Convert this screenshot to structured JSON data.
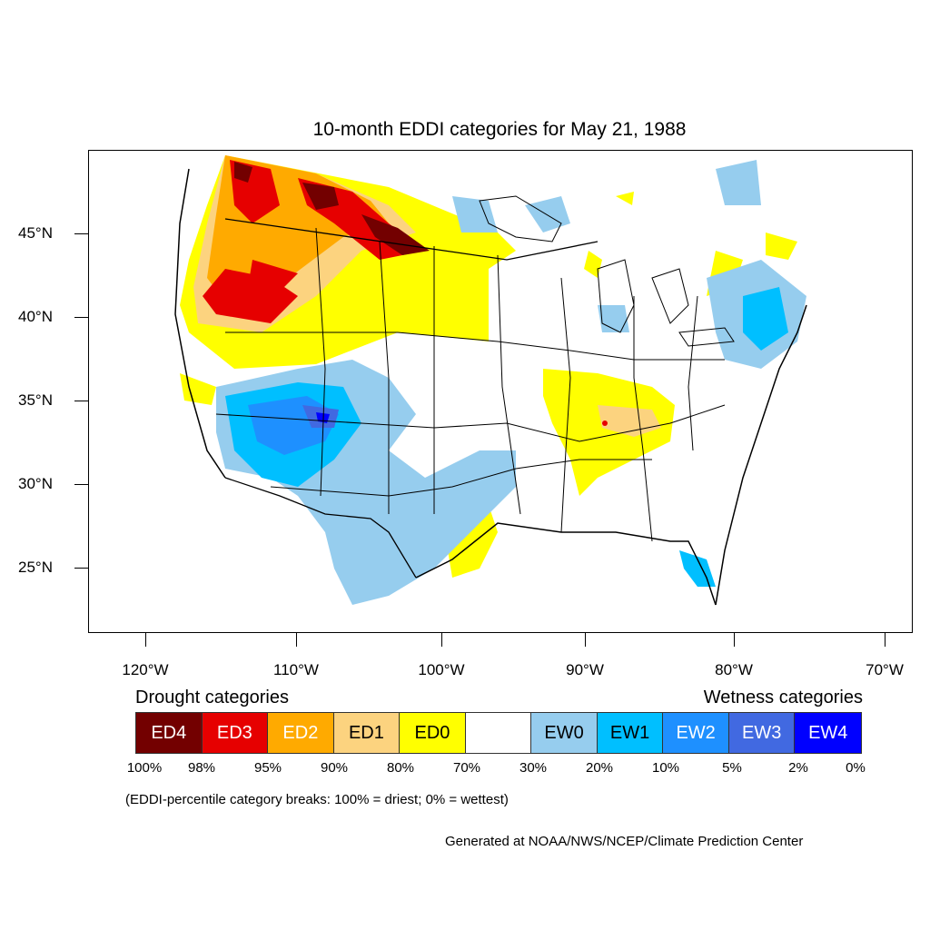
{
  "title": "10-month EDDI categories for May 21, 1988",
  "lat_labels": [
    "45°N",
    "40°N",
    "35°N",
    "30°N",
    "25°N"
  ],
  "lon_labels": [
    "120°W",
    "110°W",
    "100°W",
    "90°W",
    "80°W",
    "70°W"
  ],
  "legend": {
    "drought_heading": "Drought categories",
    "wetness_heading": "Wetness categories",
    "categories": [
      {
        "label": "ED4",
        "color": "#730000",
        "text_color": "#ffffff"
      },
      {
        "label": "ED3",
        "color": "#e60000",
        "text_color": "#ffffff"
      },
      {
        "label": "ED2",
        "color": "#ffaa00",
        "text_color": "#ffffff"
      },
      {
        "label": "ED1",
        "color": "#fcd37f",
        "text_color": "#000000"
      },
      {
        "label": "ED0",
        "color": "#ffff00",
        "text_color": "#000000"
      },
      {
        "label": "",
        "color": "#ffffff",
        "text_color": "#000000"
      },
      {
        "label": "EW0",
        "color": "#96cdee",
        "text_color": "#000000"
      },
      {
        "label": "EW1",
        "color": "#00bfff",
        "text_color": "#000000"
      },
      {
        "label": "EW2",
        "color": "#1e90ff",
        "text_color": "#ffffff"
      },
      {
        "label": "EW3",
        "color": "#4169e1",
        "text_color": "#ffffff"
      },
      {
        "label": "EW4",
        "color": "#0000ff",
        "text_color": "#ffffff"
      }
    ],
    "percentiles": [
      "100%",
      "98%",
      "95%",
      "90%",
      "80%",
      "70%",
      "30%",
      "20%",
      "10%",
      "5%",
      "2%",
      "0%"
    ]
  },
  "breaks_note": "(EDDI-percentile category breaks: 100% = driest; 0% = wettest)",
  "credit": "Generated at NOAA/NWS/NCEP/Climate Prediction Center"
}
